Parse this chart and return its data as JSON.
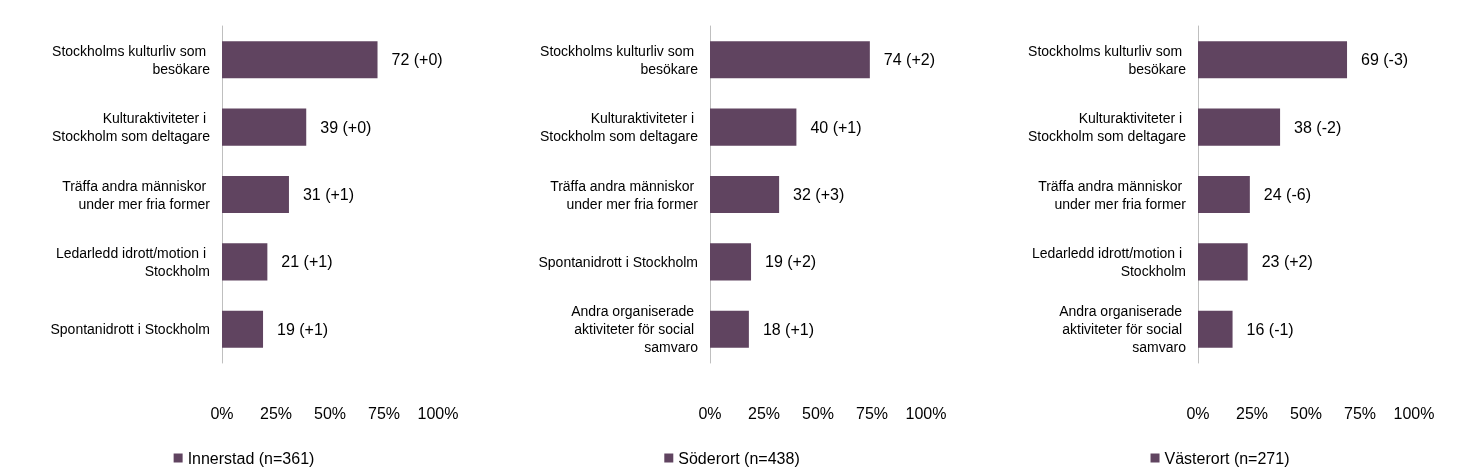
{
  "chart_data": [
    {
      "type": "bar",
      "orientation": "horizontal",
      "categories": [
        "Stockholms kulturliv som besökare",
        "Kulturaktiviteter i Stockholm som deltagare",
        "Träffa andra människor under mer fria former",
        "Ledarledd idrott/motion i Stockholm",
        "Spontanidrott i Stockholm"
      ],
      "series": [
        {
          "name": "Innerstad (n=361)",
          "color": "#604460",
          "values": [
            72,
            39,
            31,
            21,
            19
          ],
          "value_labels": [
            "72 (+0)",
            "39 (+0)",
            "31 (+1)",
            "21 (+1)",
            "19 (+1)"
          ]
        }
      ],
      "xlim": [
        0,
        100
      ],
      "xticks": [
        {
          "value": 0,
          "label": "0%"
        },
        {
          "value": 25,
          "label": "25%"
        },
        {
          "value": 50,
          "label": "50%"
        },
        {
          "value": 75,
          "label": "75%"
        },
        {
          "value": 100,
          "label": "100%"
        }
      ],
      "legend": "bottom",
      "grid": false
    },
    {
      "type": "bar",
      "orientation": "horizontal",
      "categories": [
        "Stockholms kulturliv som besökare",
        "Kulturaktiviteter i Stockholm som deltagare",
        "Träffa andra människor under mer fria former",
        "Spontanidrott i Stockholm",
        "Andra organiserade aktiviteter för social samvaro"
      ],
      "series": [
        {
          "name": "Söderort (n=438)",
          "color": "#604460",
          "values": [
            74,
            40,
            32,
            19,
            18
          ],
          "value_labels": [
            "74 (+2)",
            "40 (+1)",
            "32 (+3)",
            "19 (+2)",
            "18 (+1)"
          ]
        }
      ],
      "xlim": [
        0,
        100
      ],
      "xticks": [
        {
          "value": 0,
          "label": "0%"
        },
        {
          "value": 25,
          "label": "25%"
        },
        {
          "value": 50,
          "label": "50%"
        },
        {
          "value": 75,
          "label": "75%"
        },
        {
          "value": 100,
          "label": "100%"
        }
      ],
      "legend": "bottom",
      "grid": false
    },
    {
      "type": "bar",
      "orientation": "horizontal",
      "categories": [
        "Stockholms kulturliv som besökare",
        "Kulturaktiviteter i Stockholm som deltagare",
        "Träffa andra människor under mer fria former",
        "Ledarledd idrott/motion i Stockholm",
        "Andra organiserade aktiviteter för social samvaro"
      ],
      "series": [
        {
          "name": "Västerort (n=271)",
          "color": "#604460",
          "values": [
            69,
            38,
            24,
            23,
            16
          ],
          "value_labels": [
            "69 (-3)",
            "38 (-2)",
            "24 (-6)",
            "23 (+2)",
            "16 (-1)"
          ]
        }
      ],
      "xlim": [
        0,
        100
      ],
      "xticks": [
        {
          "value": 0,
          "label": "0%"
        },
        {
          "value": 25,
          "label": "25%"
        },
        {
          "value": 50,
          "label": "50%"
        },
        {
          "value": 75,
          "label": "75%"
        },
        {
          "value": 100,
          "label": "100%"
        }
      ],
      "legend": "bottom",
      "grid": false
    }
  ]
}
